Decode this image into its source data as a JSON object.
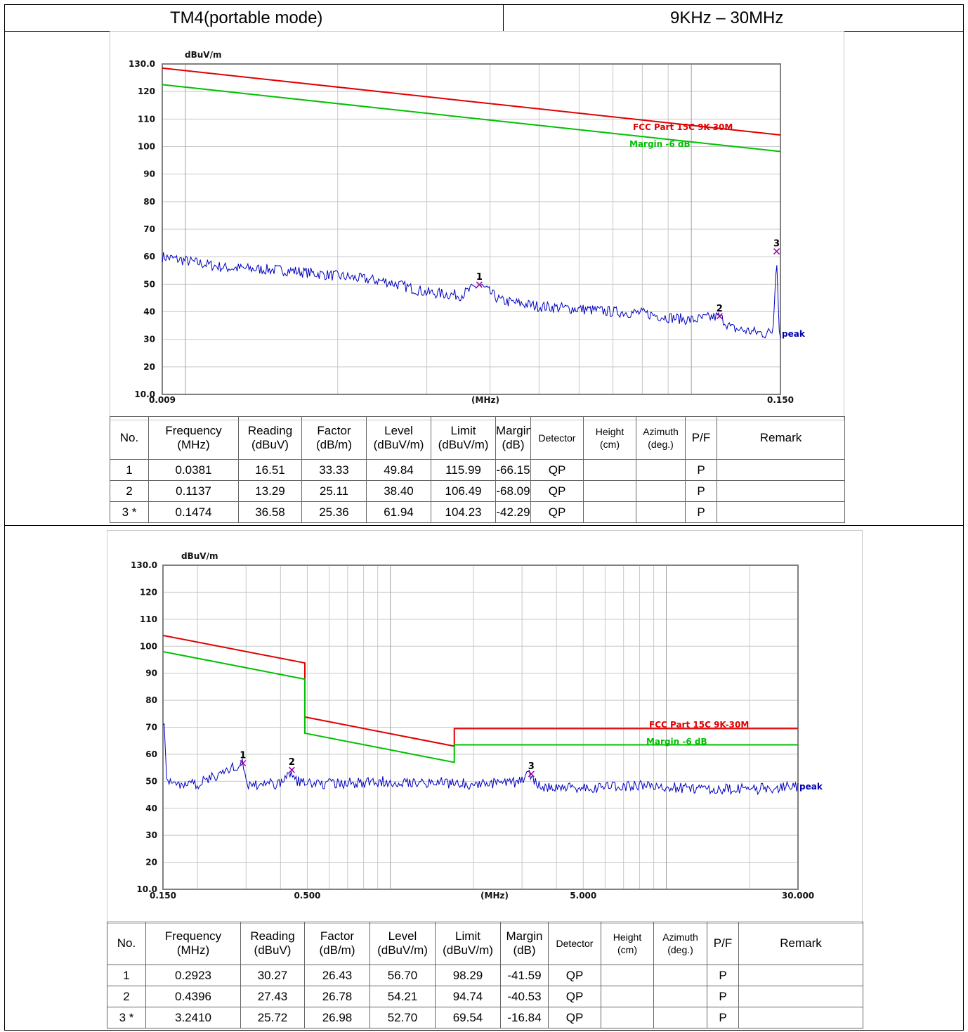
{
  "header": {
    "mode": "TM4(portable mode)",
    "range": "9KHz – 30MHz"
  },
  "table_headers": [
    [
      "No."
    ],
    [
      "Frequency",
      "(MHz)"
    ],
    [
      "Reading",
      "(dBuV)"
    ],
    [
      "Factor",
      "(dB/m)"
    ],
    [
      "Level",
      "(dBuV/m)"
    ],
    [
      "Limit",
      "(dBuV/m)"
    ],
    [
      "Margin",
      "(dB)"
    ],
    [
      "Detector"
    ],
    [
      "Height",
      "(cm)"
    ],
    [
      "Azimuth",
      "(deg.)"
    ],
    [
      "P/F"
    ],
    [
      "Remark"
    ]
  ],
  "chart_data": [
    {
      "type": "line",
      "unit": "dBuV/m",
      "xlabel": "(MHz)",
      "xscale": "log",
      "xlim": [
        0.009,
        0.15
      ],
      "ylim": [
        10,
        130
      ],
      "y_ticks": [
        "130.0",
        "120",
        "110",
        "100",
        "90",
        "80",
        "70",
        "60",
        "50",
        "40",
        "30",
        "20",
        "10.0"
      ],
      "x_tick_labels": [
        {
          "value": 0.009,
          "label": "0.009"
        },
        {
          "value": 0.15,
          "label": "0.150"
        }
      ],
      "grid": true,
      "series": [
        {
          "name": "FCC Part 15C 9K-30M",
          "color": "#e00000",
          "x": [
            0.009,
            0.15
          ],
          "y": [
            128.5,
            104.2
          ]
        },
        {
          "name": "Margin -6 dB",
          "color": "#00c000",
          "x": [
            0.009,
            0.15
          ],
          "y": [
            122.5,
            98.2
          ]
        },
        {
          "name": "peak",
          "color": "#0000c0",
          "x": [
            0.009,
            0.012,
            0.016,
            0.02,
            0.025,
            0.03,
            0.035,
            0.0381,
            0.042,
            0.05,
            0.06,
            0.07,
            0.08,
            0.09,
            0.1,
            0.1137,
            0.12,
            0.13,
            0.14,
            0.145,
            0.1474,
            0.149,
            0.15
          ],
          "y": [
            60,
            56,
            55,
            53,
            51,
            47,
            46,
            49.84,
            44,
            42,
            41,
            40,
            39.5,
            38,
            37,
            38.4,
            34,
            33,
            32,
            33,
            61.94,
            34,
            32
          ]
        }
      ],
      "markers": [
        {
          "label": "1",
          "x": 0.0381,
          "y": 49.84
        },
        {
          "label": "2",
          "x": 0.1137,
          "y": 38.4
        },
        {
          "label": "3",
          "x": 0.1474,
          "y": 61.94
        }
      ],
      "table": [
        {
          "no": "1",
          "frequency": "0.0381",
          "reading": "16.51",
          "factor": "33.33",
          "level": "49.84",
          "limit": "115.99",
          "margin": "-66.15",
          "detector": "QP",
          "height": "",
          "azimuth": "",
          "pf": "P",
          "remark": ""
        },
        {
          "no": "2",
          "frequency": "0.1137",
          "reading": "13.29",
          "factor": "25.11",
          "level": "38.40",
          "limit": "106.49",
          "margin": "-68.09",
          "detector": "QP",
          "height": "",
          "azimuth": "",
          "pf": "P",
          "remark": ""
        },
        {
          "no": "3 *",
          "frequency": "0.1474",
          "reading": "36.58",
          "factor": "25.36",
          "level": "61.94",
          "limit": "104.23",
          "margin": "-42.29",
          "detector": "QP",
          "height": "",
          "azimuth": "",
          "pf": "P",
          "remark": ""
        }
      ]
    },
    {
      "type": "line",
      "unit": "dBuV/m",
      "xlabel": "(MHz)",
      "xscale": "log",
      "xlim": [
        0.15,
        30.0
      ],
      "ylim": [
        10,
        130
      ],
      "y_ticks": [
        "130.0",
        "120",
        "110",
        "100",
        "90",
        "80",
        "70",
        "60",
        "50",
        "40",
        "30",
        "20",
        "10.0"
      ],
      "x_tick_labels": [
        {
          "value": 0.15,
          "label": "0.150"
        },
        {
          "value": 0.5,
          "label": "0.500"
        },
        {
          "value": 5.0,
          "label": "5.000"
        },
        {
          "value": 30.0,
          "label": "30.000"
        }
      ],
      "grid": true,
      "series": [
        {
          "name": "FCC Part 15C 9K-30M",
          "color": "#e00000",
          "x": [
            0.15,
            0.49,
            0.49,
            1.705,
            1.705,
            30.0
          ],
          "y": [
            104.0,
            93.8,
            73.8,
            63.0,
            69.5,
            69.5
          ]
        },
        {
          "name": "Margin -6 dB",
          "color": "#00c000",
          "x": [
            0.15,
            0.49,
            0.49,
            1.705,
            1.705,
            30.0
          ],
          "y": [
            98.0,
            87.8,
            67.8,
            57.0,
            63.5,
            63.5
          ]
        },
        {
          "name": "peak",
          "color": "#0000c0",
          "x": [
            0.15,
            0.152,
            0.155,
            0.16,
            0.2,
            0.2923,
            0.3,
            0.4,
            0.4396,
            0.45,
            0.6,
            0.8,
            1.0,
            1.5,
            2.0,
            2.8,
            3.241,
            3.4,
            5.0,
            8.0,
            12.0,
            20.0,
            30.0
          ],
          "y": [
            73,
            70,
            50,
            49,
            49,
            56.7,
            49,
            49,
            54.21,
            50,
            49,
            49.5,
            50,
            49.5,
            49,
            49.5,
            52.7,
            48,
            47.5,
            48.5,
            47.5,
            47,
            48
          ]
        }
      ],
      "markers": [
        {
          "label": "1",
          "x": 0.2923,
          "y": 56.7
        },
        {
          "label": "2",
          "x": 0.4396,
          "y": 54.21
        },
        {
          "label": "3",
          "x": 3.241,
          "y": 52.7
        }
      ],
      "table": [
        {
          "no": "1",
          "frequency": "0.2923",
          "reading": "30.27",
          "factor": "26.43",
          "level": "56.70",
          "limit": "98.29",
          "margin": "-41.59",
          "detector": "QP",
          "height": "",
          "azimuth": "",
          "pf": "P",
          "remark": ""
        },
        {
          "no": "2",
          "frequency": "0.4396",
          "reading": "27.43",
          "factor": "26.78",
          "level": "54.21",
          "limit": "94.74",
          "margin": "-40.53",
          "detector": "QP",
          "height": "",
          "azimuth": "",
          "pf": "P",
          "remark": ""
        },
        {
          "no": "3 *",
          "frequency": "3.2410",
          "reading": "25.72",
          "factor": "26.98",
          "level": "52.70",
          "limit": "69.54",
          "margin": "-16.84",
          "detector": "QP",
          "height": "",
          "azimuth": "",
          "pf": "P",
          "remark": ""
        }
      ]
    }
  ]
}
